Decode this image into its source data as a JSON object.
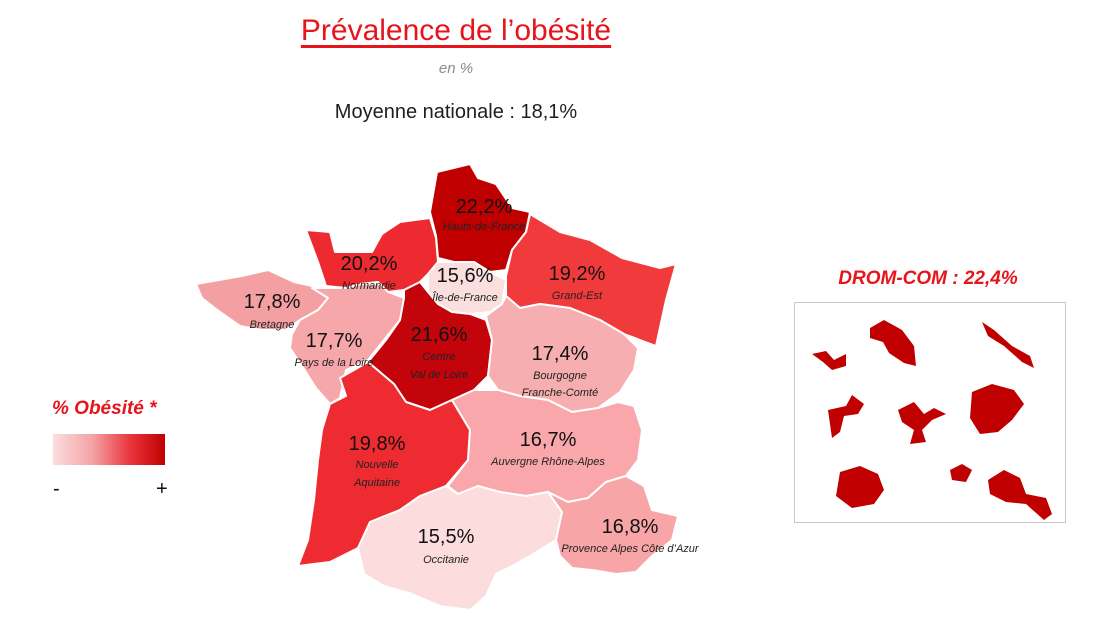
{
  "title": "Prévalence de l’obésité",
  "subtitle": "en %",
  "national_average": "Moyenne nationale : 18,1%",
  "legend": {
    "title": "% Obésité *",
    "min_label": "-",
    "max_label": "+",
    "colors": [
      "#fbdede",
      "#f4a3a6",
      "#e8323a",
      "#c00000"
    ]
  },
  "drom": {
    "title": "DROM-COM : 22,4%",
    "color": "#c00000"
  },
  "regions": {
    "hauts_de_france": {
      "value": "22,2%",
      "name": "Hauts-de-France",
      "color": "#c00000"
    },
    "normandie": {
      "value": "20,2%",
      "name": "Normandie",
      "color": "#ed2a2f"
    },
    "ile_de_france": {
      "value": "15,6%",
      "name": "Île-de-France",
      "color": "#fbdede"
    },
    "grand_est": {
      "value": "19,2%",
      "name": "Grand-Est",
      "color": "#f13a3c"
    },
    "bretagne": {
      "value": "17,8%",
      "name": "Bretagne",
      "color": "#f4a0a2"
    },
    "pays_de_la_loire": {
      "value": "17,7%",
      "name": "Pays de la Loire",
      "color": "#f5a7a9"
    },
    "centre_val_de_loire": {
      "value": "21,6%",
      "name_line1": "Centre",
      "name_line2": "Val de Loire",
      "color": "#c3040b"
    },
    "bourgogne_franche_comte": {
      "value": "17,4%",
      "name_line1": "Bourgogne",
      "name_line2": "Franche-Comté",
      "color": "#f7aeb0"
    },
    "nouvelle_aquitaine": {
      "value": "19,8%",
      "name_line1": "Nouvelle",
      "name_line2": "Aquitaine",
      "color": "#ee2b30"
    },
    "auvergne_rhone_alpes": {
      "value": "16,7%",
      "name": "Auvergne Rhône-Alpes",
      "color": "#f9a7aa"
    },
    "occitanie": {
      "value": "15,5%",
      "name": "Occitanie",
      "color": "#fcdcdc"
    },
    "paca": {
      "value": "16,8%",
      "name": "Provence Alpes Côte d’Azur",
      "color": "#f8a5a8"
    }
  }
}
